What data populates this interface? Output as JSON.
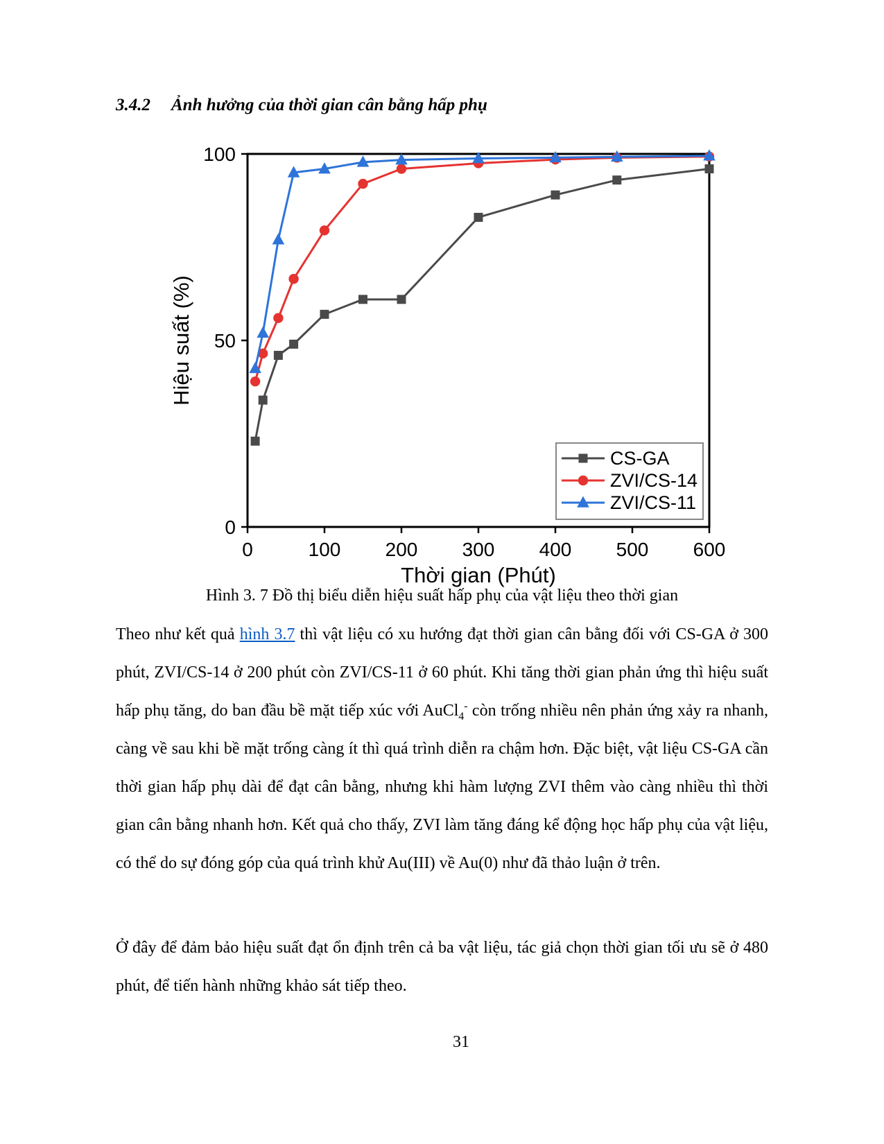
{
  "heading": {
    "number": "3.4.2",
    "title": "Ảnh hưởng của thời gian cân bằng hấp phụ"
  },
  "figure": {
    "caption": "Hình 3. 7 Đồ thị biểu diễn hiệu suất hấp phụ của vật liệu theo thời gian"
  },
  "chart_data": {
    "type": "line",
    "x": [
      10,
      20,
      40,
      60,
      100,
      150,
      200,
      300,
      400,
      480,
      600
    ],
    "series": [
      {
        "name": "CS-GA",
        "marker": "square",
        "color": "#4a4a4a",
        "values": [
          23,
          34,
          46,
          49,
          57,
          61,
          61,
          83,
          89,
          93,
          96
        ]
      },
      {
        "name": "ZVI/CS-14",
        "marker": "circle",
        "color": "#e53330",
        "values": [
          39,
          46.5,
          56,
          66.5,
          79.5,
          92,
          96,
          97.5,
          98.5,
          99,
          99.3
        ]
      },
      {
        "name": "ZVI/CS-11",
        "marker": "triangle",
        "color": "#2e74d9",
        "values": [
          42.5,
          52,
          77,
          95,
          96,
          97.8,
          98.4,
          98.8,
          99,
          99.2,
          99.5
        ]
      }
    ],
    "title": "",
    "xlabel": "Thời gian (Phút)",
    "ylabel": "Hiệu suất (%)",
    "xlim": [
      0,
      600
    ],
    "ylim": [
      0,
      100
    ],
    "x_ticks": [
      0,
      100,
      200,
      300,
      400,
      500,
      600
    ],
    "y_ticks": [
      0,
      50,
      100
    ],
    "grid": false,
    "legend_position": "lower right",
    "legend_border_color": "#888888"
  },
  "paragraph1": {
    "before_link": "Theo như kết quả ",
    "link": "hình 3.7",
    "mid": " thì vật liệu có xu hướng đạt thời gian cân bằng đối với CS-GA ở 300 phút, ZVI/CS-14 ở 200 phút còn ZVI/CS-11 ở 60 phút. Khi tăng thời gian phản ứng thì hiệu suất hấp phụ tăng, do ban đầu bề mặt tiếp xúc với ",
    "formula_base": "AuCl",
    "formula_sub": "4",
    "formula_sup": "-",
    "after": " còn trống nhiều nên phản ứng xảy ra nhanh, càng về sau khi bề mặt trống càng ít thì quá trình diễn ra chậm hơn. Đặc biệt, vật liệu CS-GA cần thời gian hấp phụ dài để đạt cân bằng, nhưng khi hàm lượng ZVI thêm vào càng nhiều thì thời gian cân bằng nhanh hơn. Kết quả cho thấy, ZVI làm tăng đáng kể động học hấp phụ của vật liệu, có thể do sự đóng góp của quá trình khử Au(III) về Au(0) như đã thảo luận ở trên."
  },
  "paragraph2": "Ở đây để đảm bảo hiệu suất đạt ổn định trên cả ba vật liệu, tác giả chọn thời gian tối ưu sẽ ở 480 phút, để tiến hành những khảo sát tiếp theo.",
  "page_number": "31",
  "link_color": "#0b5bc4"
}
